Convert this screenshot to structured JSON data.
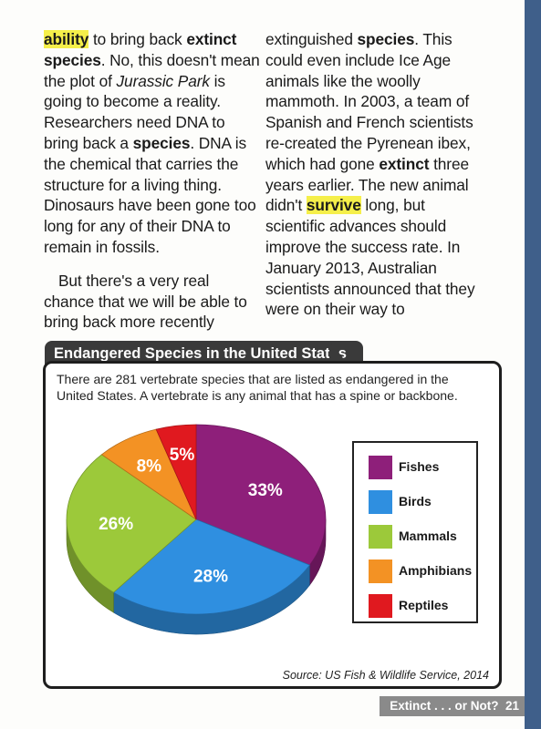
{
  "column1": {
    "p1": [
      {
        "t": "ability",
        "s": "bh"
      },
      {
        "t": " to bring back ",
        "s": ""
      },
      {
        "t": "extinct",
        "s": "b"
      },
      {
        "t": " ",
        "s": ""
      },
      {
        "t": "species",
        "s": "b"
      },
      {
        "t": ". No, this doesn't mean the plot of ",
        "s": ""
      },
      {
        "t": "Jurassic Park",
        "s": "i"
      },
      {
        "t": " is going to become a reality. Researchers need DNA to bring back a ",
        "s": ""
      },
      {
        "t": "species",
        "s": "b"
      },
      {
        "t": ". DNA is the chemical that carries the structure for a living thing. Dinosaurs have been gone too long for any of their DNA to remain in fossils.",
        "s": ""
      }
    ],
    "p2": [
      {
        "t": "But there's a very real chance that we will be able to bring back more recently",
        "s": ""
      }
    ]
  },
  "column2": {
    "p1": [
      {
        "t": "extinguished ",
        "s": ""
      },
      {
        "t": "species",
        "s": "b"
      },
      {
        "t": ". This could even include Ice Age animals like the woolly mammoth. In 2003, a team of Spanish and French scientists re-created the Pyrenean ibex, which had gone ",
        "s": ""
      },
      {
        "t": "extinct",
        "s": "b"
      },
      {
        "t": " three years earlier. The new animal didn't ",
        "s": ""
      },
      {
        "t": "survive",
        "s": "bh"
      },
      {
        "t": " long, but scientific advances should improve the success rate. In January 2013, Australian scientists announced that they were on their way to",
        "s": ""
      }
    ]
  },
  "sidebar": {
    "title": "Endangered Species in the United States",
    "intro": "There are 281 vertebrate species that are listed as endangered in the United States. A vertebrate is any animal that has a spine or backbone.",
    "source": "Source: US Fish & Wildlife Service, 2014"
  },
  "chart_data": {
    "type": "pie",
    "categories": [
      "Fishes",
      "Birds",
      "Mammals",
      "Amphibians",
      "Reptiles"
    ],
    "values": [
      33,
      28,
      26,
      8,
      5
    ],
    "labels": [
      "33%",
      "28%",
      "26%",
      "8%",
      "5%"
    ],
    "colors": [
      "#8e1f7a",
      "#2f8fe0",
      "#9cc93a",
      "#f39224",
      "#e0191f"
    ],
    "title": "Endangered Species in the United States",
    "legend_placement": "right"
  },
  "footer": {
    "label": "Extinct . . . or Not?",
    "page": "21"
  }
}
